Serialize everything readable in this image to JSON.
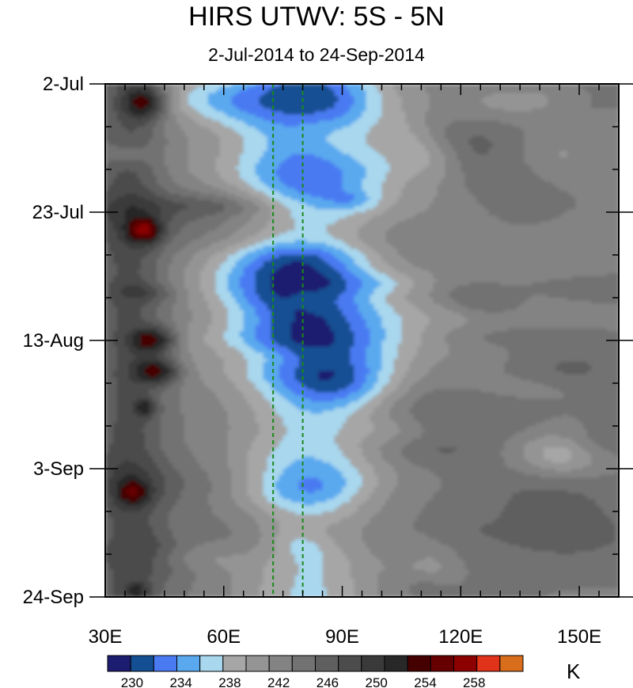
{
  "chart_data": {
    "type": "heatmap",
    "title": "HIRS UTWV: 5S - 5N",
    "subtitle": "2-Jul-2014 to 24-Sep-2014",
    "x_range": [
      30,
      160
    ],
    "x_ticks": [
      {
        "value": 30,
        "label": "30E"
      },
      {
        "value": 60,
        "label": "60E"
      },
      {
        "value": 90,
        "label": "90E"
      },
      {
        "value": 120,
        "label": "120E"
      },
      {
        "value": 150,
        "label": "150E"
      }
    ],
    "y_range": [
      "2014-07-02",
      "2014-09-24"
    ],
    "y_ticks": [
      {
        "value": "2014-07-02",
        "label": "2-Jul"
      },
      {
        "value": "2014-07-23",
        "label": "23-Jul"
      },
      {
        "value": "2014-08-13",
        "label": "13-Aug"
      },
      {
        "value": "2014-09-03",
        "label": "3-Sep"
      },
      {
        "value": "2014-09-24",
        "label": "24-Sep"
      }
    ],
    "reference_lines": [
      {
        "axis": "x",
        "value": 72.5,
        "color": "#1a8a1a",
        "style": "dashed"
      },
      {
        "axis": "x",
        "value": 80,
        "color": "#1a8a1a",
        "style": "dashed"
      }
    ],
    "colorbar": {
      "unit": "K",
      "colors": [
        "#1c1c70",
        "#154f93",
        "#4a7af2",
        "#5aa9ef",
        "#a8d7ee",
        "#a6a6a6",
        "#949494",
        "#838383",
        "#727272",
        "#5f5f5f",
        "#4c4c4c",
        "#3a3a3a",
        "#282828",
        "#450000",
        "#660000",
        "#8c0000",
        "#e0331a",
        "#d86d1c"
      ],
      "labels": [
        {
          "value": 230,
          "label": "230"
        },
        {
          "value": 234,
          "label": "234"
        },
        {
          "value": 238,
          "label": "238"
        },
        {
          "value": 242,
          "label": "242"
        },
        {
          "value": 246,
          "label": "246"
        },
        {
          "value": 250,
          "label": "250"
        },
        {
          "value": 254,
          "label": "254"
        },
        {
          "value": 258,
          "label": "258"
        }
      ],
      "levels_range": [
        228,
        262
      ]
    }
  }
}
